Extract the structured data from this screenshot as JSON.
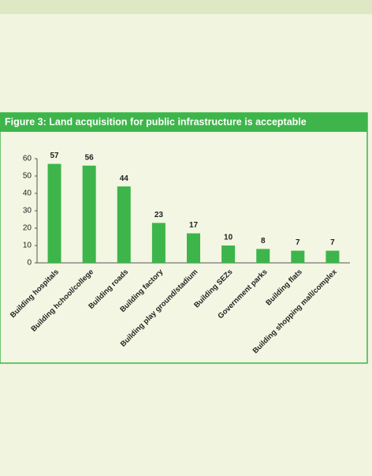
{
  "chart_data": {
    "type": "bar",
    "title": "Figure 3: Land acquisition for public infrastructure is acceptable",
    "categories": [
      "Building hospitals",
      "Building hchool/college",
      "Building roads",
      "Building factory",
      "Building play ground/stadium",
      "Building SEZs",
      "Government parks",
      "Building flats",
      "Building shopping mall/complex"
    ],
    "values": [
      57,
      56,
      44,
      23,
      17,
      10,
      8,
      7,
      7
    ],
    "color": "#3db54a",
    "ylim": [
      0,
      60
    ],
    "yticks": [
      0,
      10,
      20,
      30,
      40,
      50,
      60
    ],
    "grid": false
  }
}
